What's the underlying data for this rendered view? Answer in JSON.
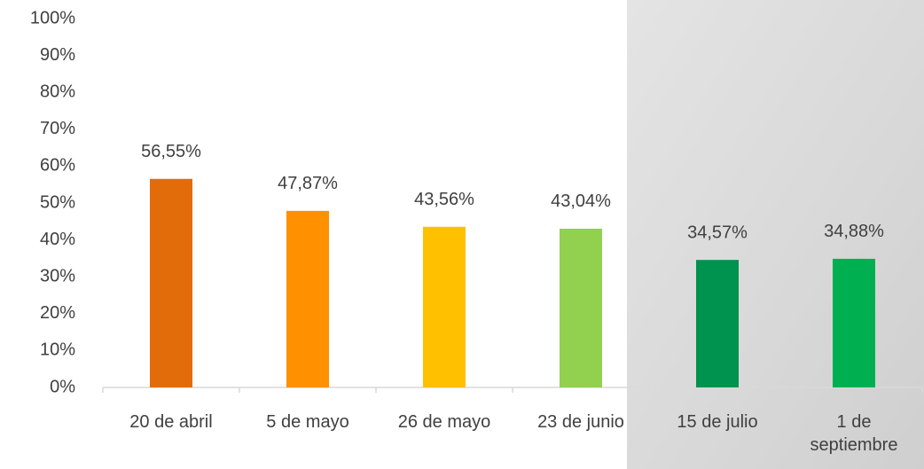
{
  "chart_data": {
    "type": "bar",
    "categories": [
      "20 de abril",
      "5 de mayo",
      "26 de mayo",
      "23 de junio",
      "15 de julio",
      "1 de septiembre"
    ],
    "values": [
      56.55,
      47.87,
      43.56,
      43.04,
      34.57,
      34.88
    ],
    "value_labels": [
      "56,55%",
      "47,87%",
      "43,56%",
      "43,04%",
      "34,57%",
      "34,88%"
    ],
    "colors": [
      "#e36c0a",
      "#ff9000",
      "#ffc000",
      "#92d050",
      "#00924f",
      "#00b050"
    ],
    "ylim": [
      0,
      100
    ],
    "yticks": [
      {
        "value": 0,
        "label": "0%"
      },
      {
        "value": 10,
        "label": "10%"
      },
      {
        "value": 20,
        "label": "20%"
      },
      {
        "value": 30,
        "label": "30%"
      },
      {
        "value": 40,
        "label": "40%"
      },
      {
        "value": 50,
        "label": "50%"
      },
      {
        "value": 60,
        "label": "60%"
      },
      {
        "value": 70,
        "label": "70%"
      },
      {
        "value": 80,
        "label": "80%"
      },
      {
        "value": 90,
        "label": "90%"
      },
      {
        "value": 100,
        "label": "100%"
      }
    ],
    "grid": false
  }
}
